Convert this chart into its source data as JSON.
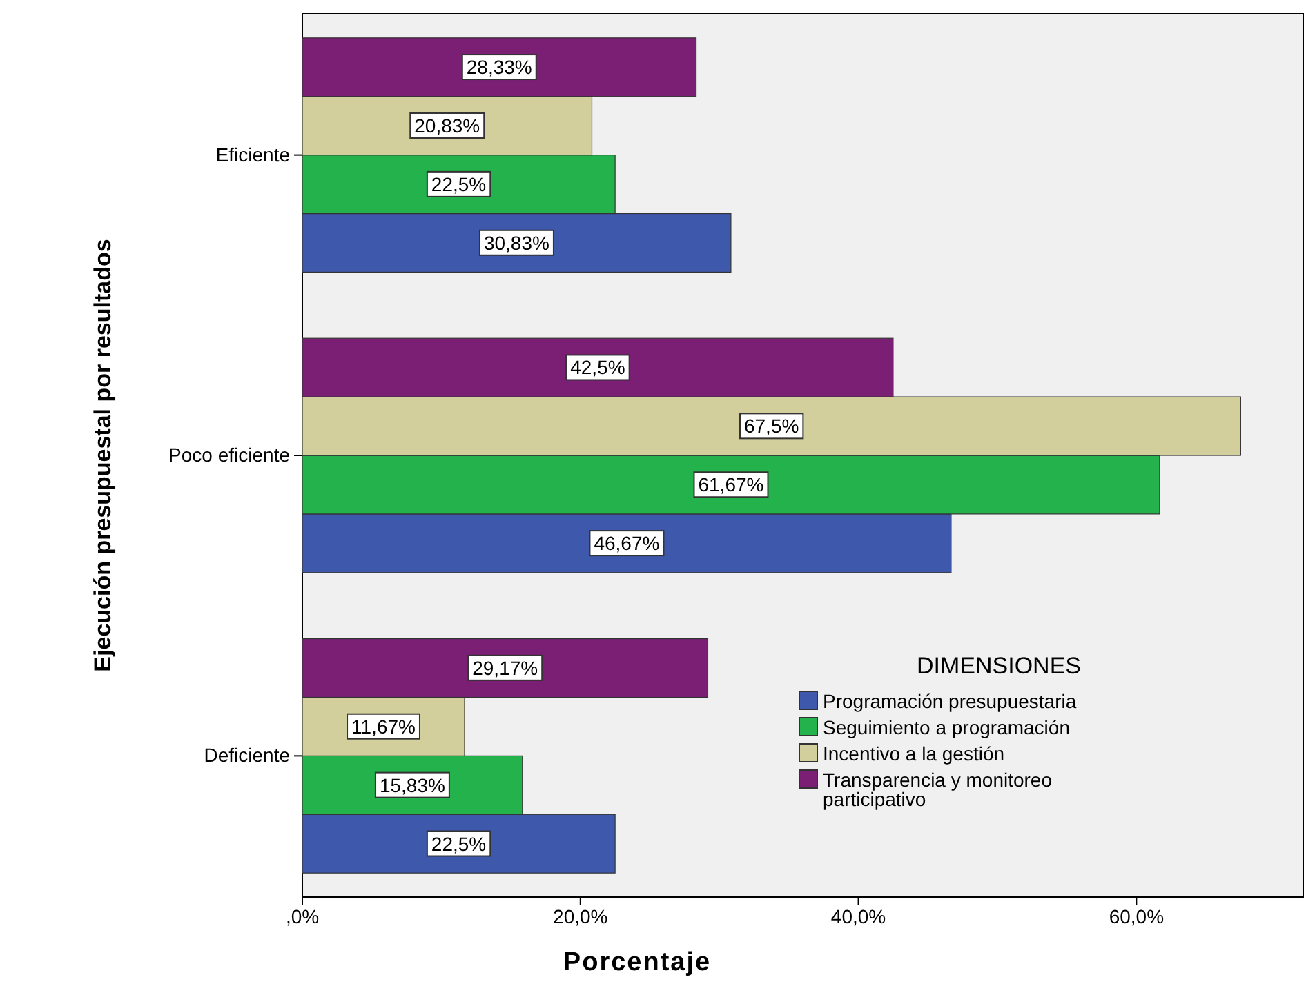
{
  "chart_data": {
    "type": "bar",
    "orientation": "horizontal",
    "xlabel": "Porcentaje",
    "ylabel": "Ejecución presupuestal por resultados",
    "legend_title": "DIMENSIONES",
    "legend": "bottom right",
    "grid": false,
    "categories": [
      "Eficiente",
      "Poco eficiente",
      "Deficiente"
    ],
    "xlim": [
      0,
      72
    ],
    "xticks": [
      {
        "value": 0,
        "label": ",0%"
      },
      {
        "value": 20,
        "label": "20,0%"
      },
      {
        "value": 40,
        "label": "40,0%"
      },
      {
        "value": 60,
        "label": "60,0%"
      }
    ],
    "series": [
      {
        "name": "Programación presupuestaria",
        "color": "#3e58ac",
        "values": [
          30.83,
          46.67,
          22.5
        ],
        "value_labels": [
          "30,83%",
          "46,67%",
          "22,5%"
        ]
      },
      {
        "name": "Seguimiento a programación",
        "color": "#23b24b",
        "values": [
          22.5,
          61.67,
          15.83
        ],
        "value_labels": [
          "22,5%",
          "61,67%",
          "15,83%"
        ]
      },
      {
        "name": "Incentivo a la gestión",
        "color": "#d3cf9c",
        "values": [
          20.83,
          67.5,
          11.67
        ],
        "value_labels": [
          "20,83%",
          "67,5%",
          "11,67%"
        ]
      },
      {
        "name": "Transparencia y monitoreo participativo",
        "color": "#7b1f75",
        "values": [
          28.33,
          42.5,
          29.17
        ],
        "value_labels": [
          "28,33%",
          "42,5%",
          "29,17%"
        ]
      }
    ]
  }
}
